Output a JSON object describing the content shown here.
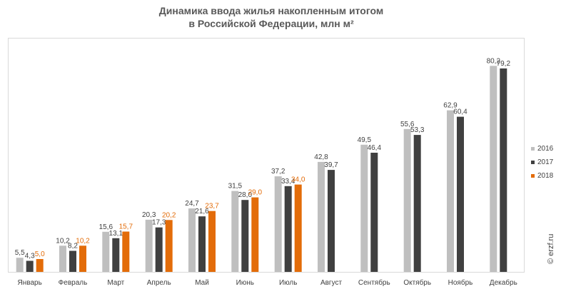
{
  "title_line1": "Динамика ввода жилья накопленным итогом",
  "title_line2": "в Российской Федерации, млн м²",
  "watermark": "© erzf.ru",
  "chart_data": {
    "type": "bar",
    "categories": [
      "Январь",
      "Февраль",
      "Март",
      "Апрель",
      "Май",
      "Июнь",
      "Июль",
      "Август",
      "Сентябрь",
      "Октябрь",
      "Ноябрь",
      "Декабрь"
    ],
    "series": [
      {
        "name": "2016",
        "color": "#bfbfbf",
        "label_color": "#404040",
        "values": [
          5.5,
          10.2,
          15.6,
          20.3,
          24.7,
          31.5,
          37.2,
          42.8,
          49.5,
          55.6,
          62.9,
          80.2
        ],
        "labels": [
          "5,5",
          "10,2",
          "15,6",
          "20,3",
          "24,7",
          "31,5",
          "37,2",
          "42,8",
          "49,5",
          "55,6",
          "62,9",
          "80,2"
        ]
      },
      {
        "name": "2017",
        "color": "#404040",
        "label_color": "#404040",
        "values": [
          4.3,
          8.2,
          13.1,
          17.3,
          21.6,
          28.0,
          33.4,
          39.7,
          46.4,
          53.3,
          60.4,
          79.2
        ],
        "labels": [
          "4,3",
          "8,2",
          "13,1",
          "17,3",
          "21,6",
          "28,0",
          "33,4",
          "39,7",
          "46,4",
          "53,3",
          "60,4",
          "79,2"
        ]
      },
      {
        "name": "2018",
        "color": "#e36c09",
        "label_color": "#e36c09",
        "values": [
          5.0,
          10.2,
          15.7,
          20.2,
          23.7,
          29.0,
          34.0,
          null,
          null,
          null,
          null,
          null
        ],
        "labels": [
          "5,0",
          "10,2",
          "15,7",
          "20,2",
          "23,7",
          "29,0",
          "34,0",
          "",
          "",
          "",
          "",
          ""
        ]
      }
    ],
    "ylim": [
      0,
      82
    ],
    "grid": false,
    "legend_position": "right"
  }
}
